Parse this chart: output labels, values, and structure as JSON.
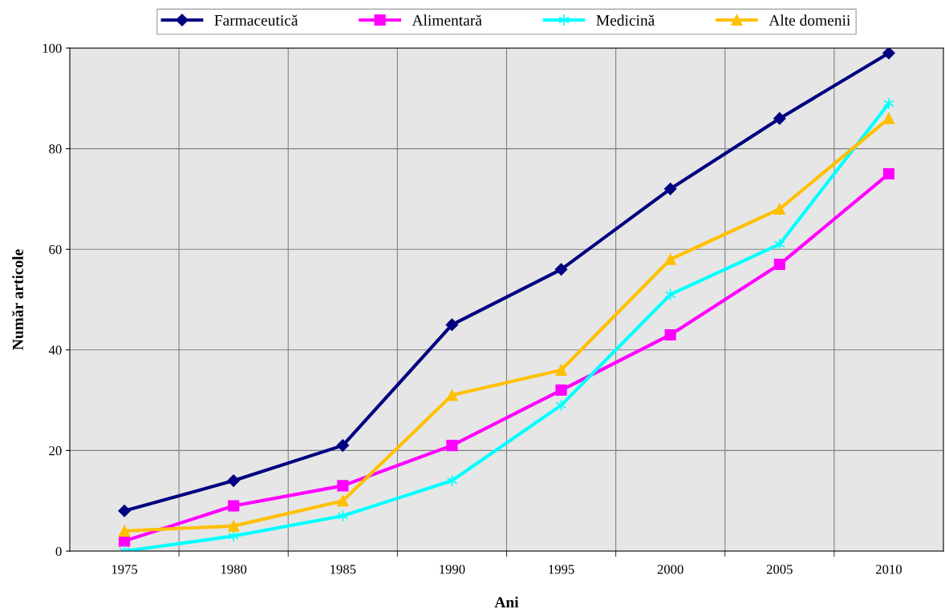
{
  "chart_data": {
    "type": "line",
    "xlabel": "Ani",
    "ylabel": "Număr articole",
    "categories": [
      "1975",
      "1980",
      "1985",
      "1990",
      "1995",
      "2000",
      "2005",
      "2010"
    ],
    "series": [
      {
        "name": "Farmaceutică",
        "color": "#000080",
        "marker": "diamond",
        "values": [
          8,
          14,
          21,
          45,
          56,
          72,
          86,
          99
        ]
      },
      {
        "name": "Alimentară",
        "color": "#ff00ff",
        "marker": "square",
        "values": [
          2,
          9,
          13,
          21,
          32,
          43,
          57,
          75
        ]
      },
      {
        "name": "Medicină",
        "color": "#00ffff",
        "marker": "cross",
        "values": [
          0,
          3,
          7,
          14,
          29,
          51,
          61,
          89
        ]
      },
      {
        "name": "Alte domenii",
        "color": "#ffc000",
        "marker": "triangle",
        "values": [
          4,
          5,
          10,
          31,
          36,
          58,
          68,
          86
        ]
      }
    ],
    "ylim": [
      0,
      100
    ],
    "yticks": [
      0,
      20,
      40,
      60,
      80,
      100
    ],
    "grid": true,
    "legend": "top"
  }
}
